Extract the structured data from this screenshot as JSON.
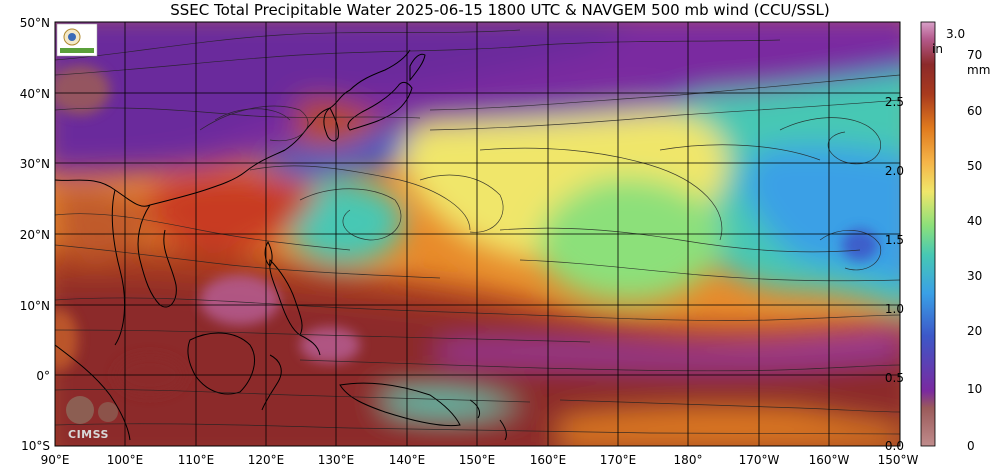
{
  "title": "SSEC Total Precipitable Water  2025-06-15 1800 UTC & NAVGEM 500 mb wind (CCU/SSL)",
  "lat_labels": [
    "50°N",
    "40°N",
    "30°N",
    "20°N",
    "10°N",
    "0°",
    "10°S"
  ],
  "lon_labels": [
    "90°E",
    "100°E",
    "110°E",
    "120°E",
    "130°E",
    "140°E",
    "150°E",
    "160°E",
    "170°E",
    "180°",
    "170°W",
    "160°W",
    "150°W"
  ],
  "colorbar": {
    "in_label": "in",
    "mm_label": "mm",
    "in_ticks": [
      "3.0",
      "2.5",
      "2.0",
      "1.5",
      "1.0",
      "0.5",
      "0.0"
    ],
    "mm_ticks": [
      "70",
      "60",
      "50",
      "40",
      "30",
      "20",
      "10",
      "0"
    ],
    "colors": [
      "#c08c8c",
      "#8c2a2a",
      "#b84a18",
      "#e07a1e",
      "#f5b448",
      "#f0e66a",
      "#8ce07a",
      "#46c8b4",
      "#3aa0e6",
      "#3c58c8",
      "#6a2aa8",
      "#8c3a9c",
      "#b46eb4"
    ]
  },
  "logos": {
    "bottom_text": "CIMSS"
  }
}
